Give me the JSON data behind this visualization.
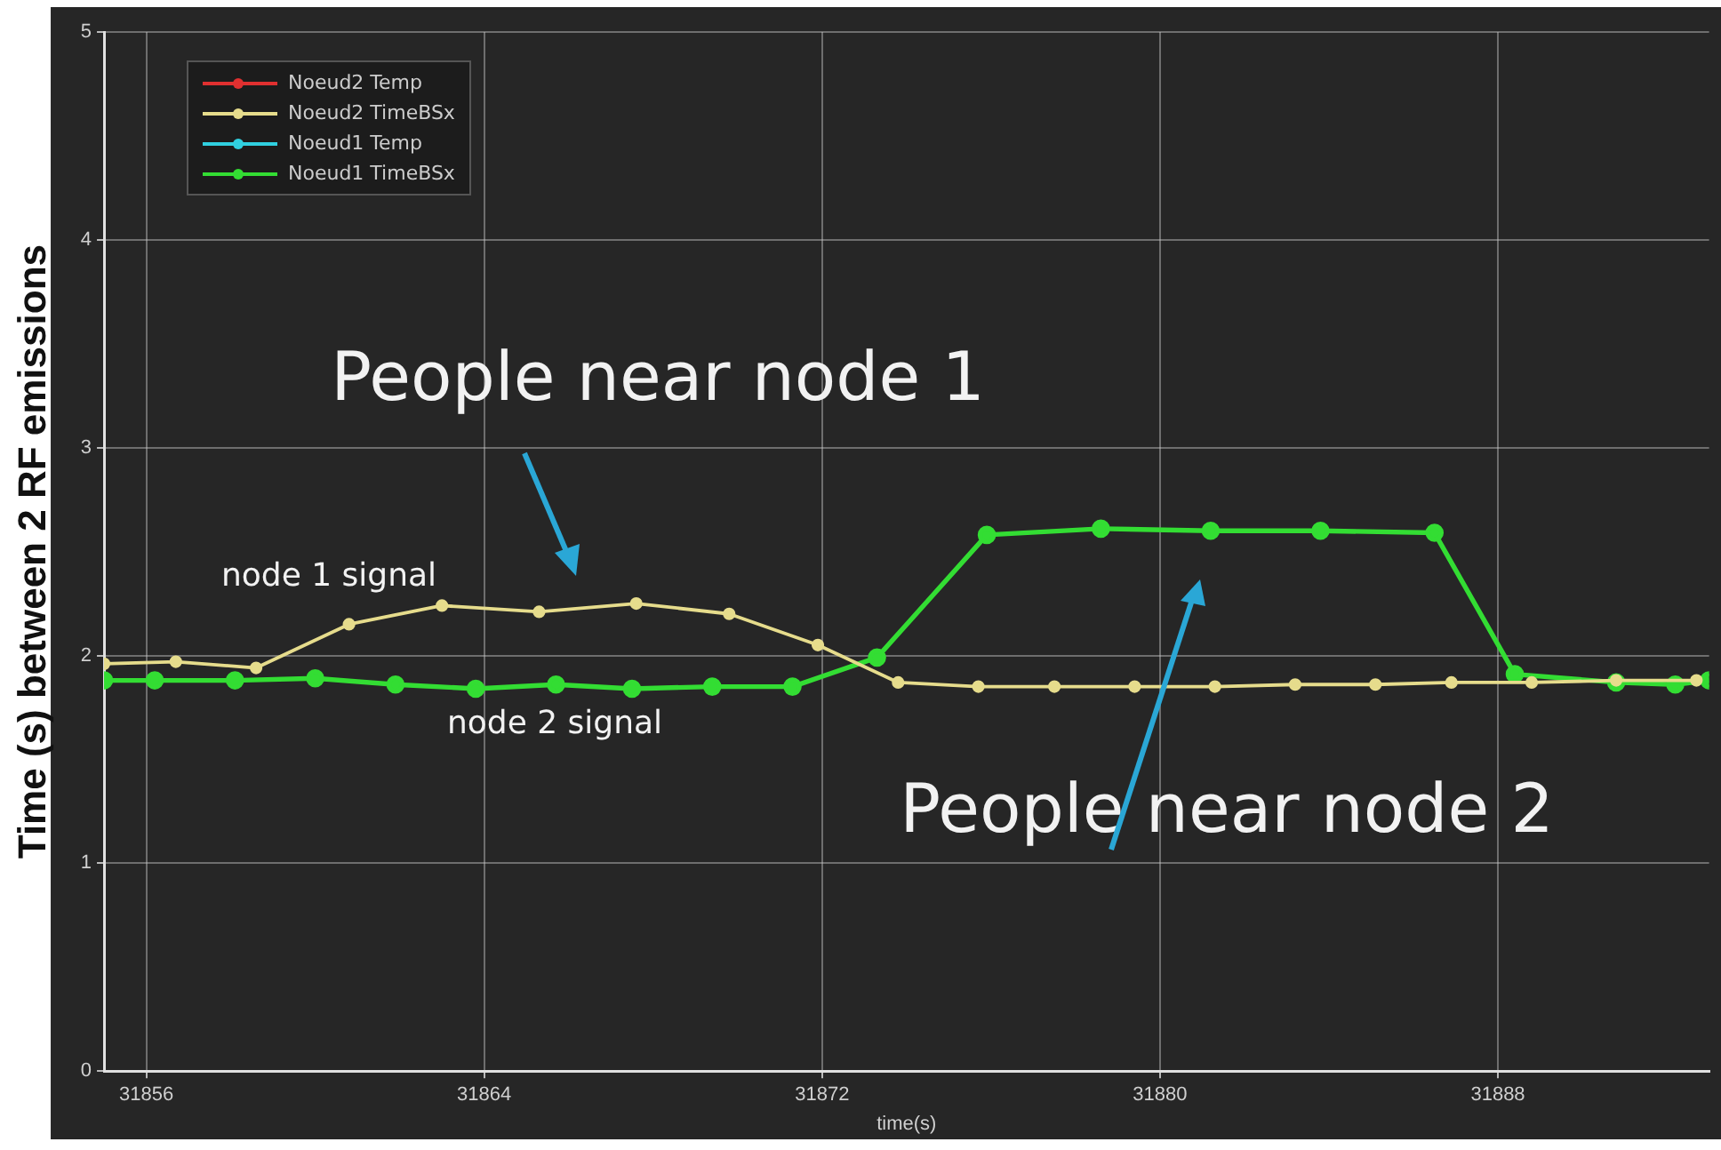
{
  "chart_data": {
    "type": "line",
    "ylabel": "Time (s) between 2 RF emissions",
    "xlabel": "time(s)",
    "xlim": [
      31855,
      31893
    ],
    "xticks": [
      31856,
      31864,
      31872,
      31880,
      31888
    ],
    "ylim": [
      0,
      5
    ],
    "yticks": [
      0,
      1,
      2,
      3,
      4,
      5
    ],
    "grid": true,
    "legend": "top left",
    "marker": "circle",
    "line_style": "solid",
    "series": [
      {
        "name": "Noeud2 Temp",
        "color": "#e03030"
      },
      {
        "name": "Noeud2 TimeBSx",
        "color": "#e6dc8c",
        "x": [
          31855,
          31856.7,
          31858.6,
          31860.8,
          31863.0,
          31865.3,
          31867.6,
          31869.8,
          31871.9,
          31873.8,
          31875.7,
          31877.5,
          31879.4,
          31881.3,
          31883.2,
          31885.1,
          31886.9,
          31888.8,
          31890.8,
          31892.7
        ],
        "values": [
          1.96,
          1.97,
          1.94,
          2.15,
          2.24,
          2.21,
          2.25,
          2.2,
          2.05,
          1.87,
          1.85,
          1.85,
          1.85,
          1.85,
          1.86,
          1.86,
          1.87,
          1.87,
          1.88,
          1.88
        ]
      },
      {
        "name": "Noeud1 Temp",
        "color": "#30d0e0"
      },
      {
        "name": "Noeud1 TimeBSx",
        "color": "#33dd33",
        "x": [
          31855,
          31856.2,
          31858.1,
          31860.0,
          31861.9,
          31863.8,
          31865.7,
          31867.5,
          31869.4,
          31871.3,
          31873.3,
          31875.9,
          31878.6,
          31881.2,
          31883.8,
          31886.5,
          31888.4,
          31890.8,
          31892.2,
          31893
        ],
        "values": [
          1.88,
          1.88,
          1.88,
          1.89,
          1.86,
          1.84,
          1.86,
          1.84,
          1.85,
          1.85,
          1.99,
          2.58,
          2.61,
          2.6,
          2.6,
          2.59,
          1.91,
          1.87,
          1.86,
          1.88
        ]
      }
    ],
    "annotations": [
      "People near node 1",
      "node 1 signal",
      "node 2 signal",
      "People near node 2"
    ]
  }
}
